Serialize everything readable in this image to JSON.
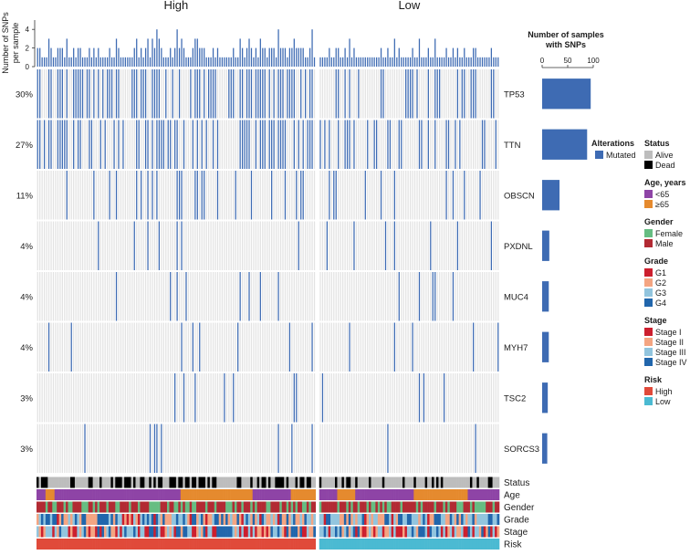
{
  "chart_data": {
    "type": "oncoprint",
    "groups": [
      {
        "name": "High",
        "label": "High",
        "samples": 124
      },
      {
        "name": "Low",
        "label": "Low",
        "samples": 80
      }
    ],
    "top_panel": {
      "ylabel": "Number of SNPs\nper sample",
      "yticks": [
        0,
        2,
        4
      ],
      "ylim": [
        0,
        5
      ]
    },
    "genes": [
      {
        "name": "TP53",
        "percent": "30%",
        "count": 95
      },
      {
        "name": "TTN",
        "percent": "27%",
        "count": 88
      },
      {
        "name": "OBSCN",
        "percent": "11%",
        "count": 34
      },
      {
        "name": "PXDNL",
        "percent": "4%",
        "count": 14
      },
      {
        "name": "MUC4",
        "percent": "4%",
        "count": 13
      },
      {
        "name": "MYH7",
        "percent": "4%",
        "count": 13
      },
      {
        "name": "TSC2",
        "percent": "3%",
        "count": 11
      },
      {
        "name": "SORCS3",
        "percent": "3%",
        "count": 10
      }
    ],
    "right_panel": {
      "title": "Number of samples\nwith SNPs",
      "xticks": [
        0,
        50,
        100
      ],
      "xlim": [
        0,
        110
      ]
    },
    "alterations_legend": {
      "title": "Alterations",
      "items": [
        {
          "label": "Mutated",
          "color": "#3e6bb3"
        }
      ]
    },
    "annotation_tracks": [
      {
        "name": "Status",
        "label": "Status"
      },
      {
        "name": "Age",
        "label": "Age"
      },
      {
        "name": "Gender",
        "label": "Gender"
      },
      {
        "name": "Grade",
        "label": "Grade"
      },
      {
        "name": "Stage",
        "label": "Stage"
      },
      {
        "name": "Risk",
        "label": "Risk"
      }
    ],
    "legends": [
      {
        "title": "Status",
        "items": [
          {
            "label": "Alive",
            "color": "#bdbdbd"
          },
          {
            "label": "Dead",
            "color": "#000000"
          }
        ]
      },
      {
        "title": "Age, years",
        "items": [
          {
            "label": "<65",
            "color": "#8e44a6"
          },
          {
            "label": "≥65",
            "color": "#e58a2e"
          }
        ]
      },
      {
        "title": "Gender",
        "items": [
          {
            "label": "Female",
            "color": "#66bd82"
          },
          {
            "label": "Male",
            "color": "#b22a33"
          }
        ]
      },
      {
        "title": "Grade",
        "items": [
          {
            "label": "G1",
            "color": "#cc1f2e"
          },
          {
            "label": "G2",
            "color": "#f4a582"
          },
          {
            "label": "G3",
            "color": "#92c5de"
          },
          {
            "label": "G4",
            "color": "#2166ac"
          }
        ]
      },
      {
        "title": "Stage",
        "items": [
          {
            "label": "Stage I",
            "color": "#cc1f2e"
          },
          {
            "label": "Stage II",
            "color": "#f4a582"
          },
          {
            "label": "Stage III",
            "color": "#92c5de"
          },
          {
            "label": "Stage IV",
            "color": "#2166ac"
          }
        ]
      },
      {
        "title": "Risk",
        "items": [
          {
            "label": "High",
            "color": "#e04a3a"
          },
          {
            "label": "Low",
            "color": "#4bbad2"
          }
        ]
      }
    ]
  },
  "colors": {
    "mutated": "#3e6bb3",
    "cell_bg": "#e3e3e3",
    "bar": "#3e6bb3"
  }
}
